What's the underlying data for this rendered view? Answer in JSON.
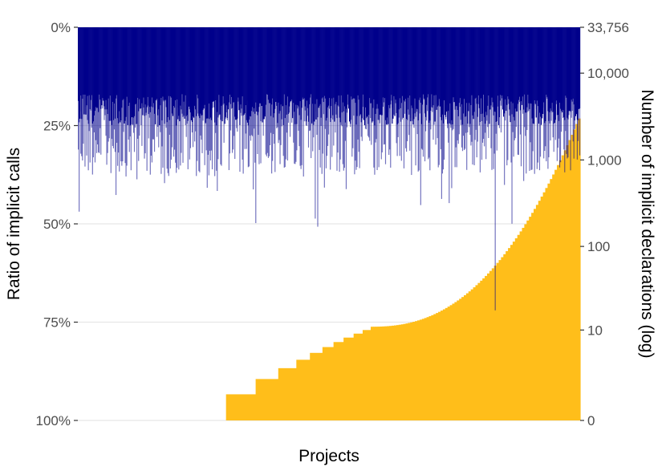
{
  "chart_data": {
    "type": "bar",
    "title": "",
    "xlabel": "Projects",
    "ylabel_left": "Ratio of implicit calls",
    "ylabel_right": "Number of implicit declarations (log)",
    "left_axis": {
      "ticks": [
        0,
        25,
        50,
        75,
        100
      ],
      "tick_labels": [
        "0%",
        "25%",
        "50%",
        "75%",
        "100%"
      ],
      "ylim": [
        0,
        100
      ],
      "reversed": true,
      "unit": "percent"
    },
    "right_axis": {
      "scale": "log1p",
      "ticks": [
        0,
        10,
        100,
        1000,
        10000,
        33756
      ],
      "tick_labels": [
        "0",
        "10",
        "100",
        "1,000",
        "10,000",
        "33,756"
      ],
      "ylim": [
        0,
        33756
      ]
    },
    "grid": "horizontal major lines only",
    "legend": "none",
    "colors": {
      "implicit_call_ratio": "#00008b",
      "implicit_declarations": "#ffbe1a",
      "grid": "#e6e6e6"
    },
    "series": [
      {
        "axis": "left",
        "kind": "per-project ratio (downward bars)",
        "summary": {
          "projects": 600,
          "typical_range_percent": [
            18,
            38
          ],
          "max_percent": 72
        }
      },
      {
        "axis": "right",
        "kind": "per-project count, sorted ascending",
        "steps": [
          {
            "value": 0,
            "share": 0.295
          },
          {
            "value": 1,
            "share": 0.059
          },
          {
            "value": 2,
            "share": 0.045
          },
          {
            "value": 3,
            "share": 0.036
          },
          {
            "value": 4,
            "share": 0.027
          },
          {
            "value": 5,
            "share": 0.025
          },
          {
            "value": 6,
            "share": 0.022
          },
          {
            "value": 7,
            "share": 0.02
          },
          {
            "value": 8,
            "share": 0.02
          },
          {
            "value": 9,
            "share": 0.018
          },
          {
            "value": 10,
            "share": 0.016
          }
        ],
        "tail_range": [
          11,
          3000
        ]
      }
    ]
  }
}
